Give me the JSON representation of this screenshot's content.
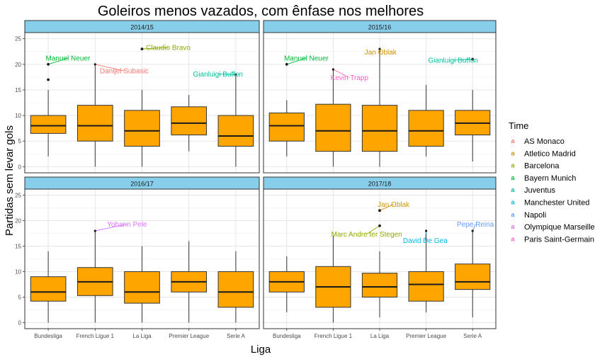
{
  "chart_data": {
    "type": "box",
    "title": "Goleiros menos vazados, com ênfase nos melhores",
    "xlabel": "Liga",
    "ylabel": "Partidas sem levar gols",
    "categories": [
      "Bundesliga",
      "French Ligue 1",
      "La Liga",
      "Premier League",
      "Serie A"
    ],
    "ylim": [
      -1.2,
      26.2
    ],
    "yticks": [
      0,
      5,
      10,
      15,
      20,
      25
    ],
    "grid": true,
    "legend": {
      "title": "Time",
      "position": "right",
      "entries": [
        {
          "name": "AS Monaco",
          "color": "#F8766D"
        },
        {
          "name": "Atletico Madrid",
          "color": "#D39200"
        },
        {
          "name": "Barcelona",
          "color": "#93AA00"
        },
        {
          "name": "Bayern Munich",
          "color": "#00BA38"
        },
        {
          "name": "Juventus",
          "color": "#00C19F"
        },
        {
          "name": "Manchester United",
          "color": "#00B9E3"
        },
        {
          "name": "Napoli",
          "color": "#619CFF"
        },
        {
          "name": "Olympique Marseille",
          "color": "#DB72FB"
        },
        {
          "name": "Paris Saint-Germain",
          "color": "#FF61C3"
        }
      ]
    },
    "box_fill": "#FFA500",
    "strip_fill": "#87CEEB",
    "panels": [
      {
        "season": "2014/15",
        "boxes": [
          {
            "category": "Bundesliga",
            "min": 2,
            "q1": 6.5,
            "median": 8,
            "q3": 10,
            "max": 15,
            "outliers": [
              17,
              20
            ]
          },
          {
            "category": "French Ligue 1",
            "min": 0,
            "q1": 5,
            "median": 8,
            "q3": 12,
            "max": 20,
            "outliers": []
          },
          {
            "category": "La Liga",
            "min": 0,
            "q1": 4,
            "median": 7,
            "q3": 11,
            "max": 15,
            "outliers": [
              23
            ]
          },
          {
            "category": "Premier League",
            "min": 3,
            "q1": 6.2,
            "median": 8.5,
            "q3": 11.7,
            "max": 14,
            "outliers": []
          },
          {
            "category": "Serie A",
            "min": 0,
            "q1": 4,
            "median": 6,
            "q3": 10,
            "max": 18,
            "outliers": []
          }
        ],
        "labels": [
          {
            "text": "Manuel Neuer",
            "team": "Bayern Munich",
            "category": "Bundesliga",
            "value": 20,
            "lx": 0.42,
            "ly": 21.2
          },
          {
            "text": "Danijel Subasic",
            "team": "AS Monaco",
            "category": "French Ligue 1",
            "value": 20,
            "lx": 1.62,
            "ly": 18.7
          },
          {
            "text": "Claudio Bravo",
            "team": "Barcelona",
            "category": "La Liga",
            "value": 23,
            "lx": 2.56,
            "ly": 23.3
          },
          {
            "text": "Gianluigi Buffon",
            "team": "Juventus",
            "category": "Serie A",
            "value": 18,
            "lx": 3.62,
            "ly": 18.1
          }
        ]
      },
      {
        "season": "2015/16",
        "boxes": [
          {
            "category": "Bundesliga",
            "min": 2,
            "q1": 5,
            "median": 8,
            "q3": 10.5,
            "max": 13,
            "outliers": [
              20
            ]
          },
          {
            "category": "French Ligue 1",
            "min": 0,
            "q1": 3,
            "median": 7,
            "q3": 12.2,
            "max": 19,
            "outliers": []
          },
          {
            "category": "La Liga",
            "min": 0,
            "q1": 3,
            "median": 7,
            "q3": 12,
            "max": 23,
            "outliers": []
          },
          {
            "category": "Premier League",
            "min": 2,
            "q1": 4,
            "median": 7,
            "q3": 11,
            "max": 16,
            "outliers": []
          },
          {
            "category": "Serie A",
            "min": 1,
            "q1": 6.2,
            "median": 8.5,
            "q3": 11,
            "max": 15,
            "outliers": [
              21
            ]
          }
        ],
        "labels": [
          {
            "text": "Manuel Neuer",
            "team": "Bayern Munich",
            "category": "Bundesliga",
            "value": 20,
            "lx": 0.42,
            "ly": 21.2
          },
          {
            "text": "Kevin Trapp",
            "team": "Paris Saint-Germain",
            "category": "French Ligue 1",
            "value": 19,
            "lx": 1.35,
            "ly": 17.4
          },
          {
            "text": "Jan Oblak",
            "team": "Atletico Madrid",
            "category": "La Liga",
            "value": 23,
            "lx": 2.02,
            "ly": 22.4
          },
          {
            "text": "Gianluigi Buffon",
            "team": "Juventus",
            "category": "Serie A",
            "value": 21,
            "lx": 3.58,
            "ly": 20.8
          }
        ]
      },
      {
        "season": "2016/17",
        "boxes": [
          {
            "category": "Bundesliga",
            "min": 0,
            "q1": 4.2,
            "median": 6,
            "q3": 9,
            "max": 14,
            "outliers": []
          },
          {
            "category": "French Ligue 1",
            "min": 0,
            "q1": 5.3,
            "median": 8,
            "q3": 10.8,
            "max": 18,
            "outliers": []
          },
          {
            "category": "La Liga",
            "min": 0,
            "q1": 3.8,
            "median": 6,
            "q3": 10,
            "max": 15,
            "outliers": []
          },
          {
            "category": "Premier League",
            "min": 0,
            "q1": 6,
            "median": 8,
            "q3": 10,
            "max": 16,
            "outliers": []
          },
          {
            "category": "Serie A",
            "min": 0,
            "q1": 3,
            "median": 6,
            "q3": 10,
            "max": 14,
            "outliers": []
          }
        ],
        "labels": [
          {
            "text": "Yohann Pele",
            "team": "Olympique Marseille",
            "category": "French Ligue 1",
            "value": 18,
            "lx": 1.68,
            "ly": 19.3
          }
        ]
      },
      {
        "season": "2017/18",
        "boxes": [
          {
            "category": "Bundesliga",
            "min": 2,
            "q1": 6,
            "median": 8,
            "q3": 10,
            "max": 13,
            "outliers": []
          },
          {
            "category": "French Ligue 1",
            "min": 0,
            "q1": 3,
            "median": 7,
            "q3": 11,
            "max": 17,
            "outliers": []
          },
          {
            "category": "La Liga",
            "min": 1,
            "q1": 5,
            "median": 7,
            "q3": 9.7,
            "max": 14,
            "outliers": [
              19,
              22
            ]
          },
          {
            "category": "Premier League",
            "min": 2,
            "q1": 4.2,
            "median": 7.5,
            "q3": 10,
            "max": 18,
            "outliers": []
          },
          {
            "category": "Serie A",
            "min": 1,
            "q1": 6.5,
            "median": 8,
            "q3": 11.5,
            "max": 18,
            "outliers": []
          }
        ],
        "labels": [
          {
            "text": "Jan Oblak",
            "team": "Atletico Madrid",
            "category": "La Liga",
            "value": 22,
            "lx": 2.3,
            "ly": 23.2
          },
          {
            "text": "Marc Andre ter Stegen",
            "team": "Barcelona",
            "category": "La Liga",
            "value": 19,
            "lx": 1.72,
            "ly": 17.4
          },
          {
            "text": "David De Gea",
            "team": "Manchester United",
            "category": "Premier League",
            "value": 18,
            "lx": 2.98,
            "ly": 16.1
          },
          {
            "text": "Pepe Reina",
            "team": "Napoli",
            "category": "Serie A",
            "value": 18,
            "lx": 4.06,
            "ly": 19.3
          }
        ]
      }
    ]
  }
}
